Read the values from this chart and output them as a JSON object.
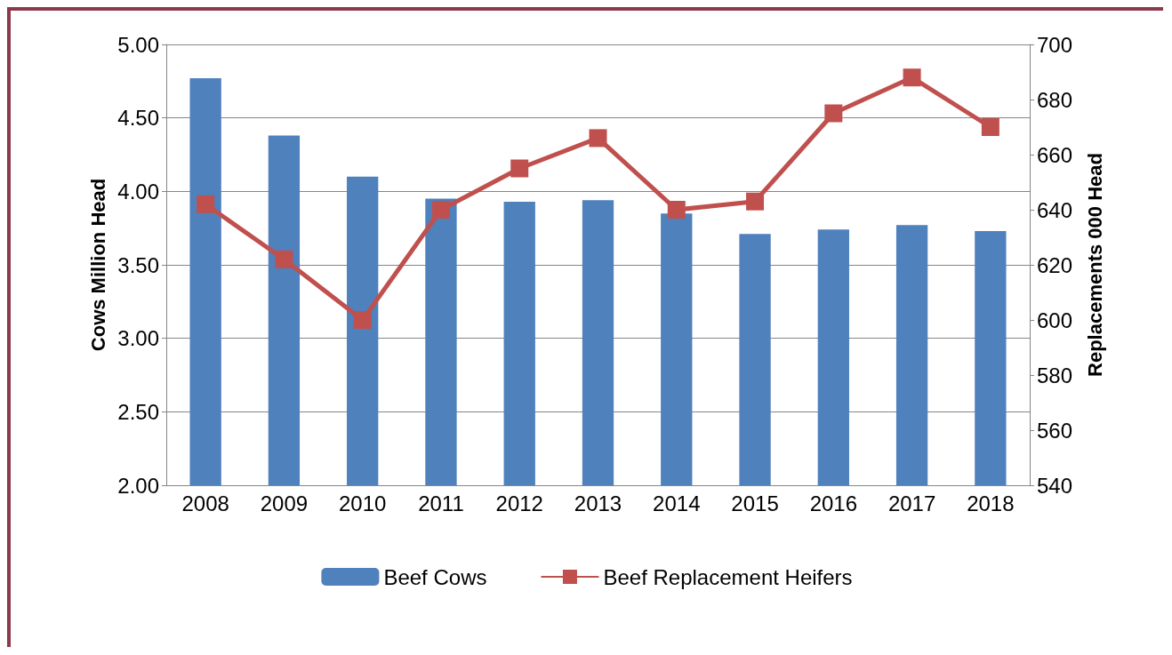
{
  "chart_data": {
    "type": "bar",
    "ylabel": "Cows Million Head",
    "y2label": "Replacements 000 Head",
    "categories": [
      "2008",
      "2009",
      "2010",
      "2011",
      "2012",
      "2013",
      "2014",
      "2015",
      "2016",
      "2017",
      "2018"
    ],
    "series": [
      {
        "name": "Beef Cows",
        "color": "#4f81bd",
        "values": [
          4.77,
          4.38,
          4.1,
          3.95,
          3.93,
          3.94,
          3.85,
          3.71,
          3.74,
          3.77,
          3.73
        ]
      },
      {
        "name": "Beef Replacement Heifers",
        "type": "line",
        "axis": "y2",
        "color": "#c0504d",
        "marker": "square",
        "values": [
          642,
          622,
          600,
          640,
          655,
          666,
          640,
          643,
          675,
          688,
          670
        ]
      }
    ],
    "ylim": [
      2,
      5
    ],
    "yticks": [
      {
        "value": 2,
        "label": "2.00"
      },
      {
        "value": 2.5,
        "label": "2.50"
      },
      {
        "value": 3,
        "label": "3.00"
      },
      {
        "value": 3.5,
        "label": "3.50"
      },
      {
        "value": 4,
        "label": "4.00"
      },
      {
        "value": 4.5,
        "label": "4.50"
      },
      {
        "value": 5,
        "label": "5.00"
      }
    ],
    "y2lim": [
      540,
      700
    ],
    "y2ticks": [
      540,
      560,
      580,
      600,
      620,
      640,
      660,
      680,
      700
    ],
    "grid": "y",
    "legend": "bottom"
  }
}
